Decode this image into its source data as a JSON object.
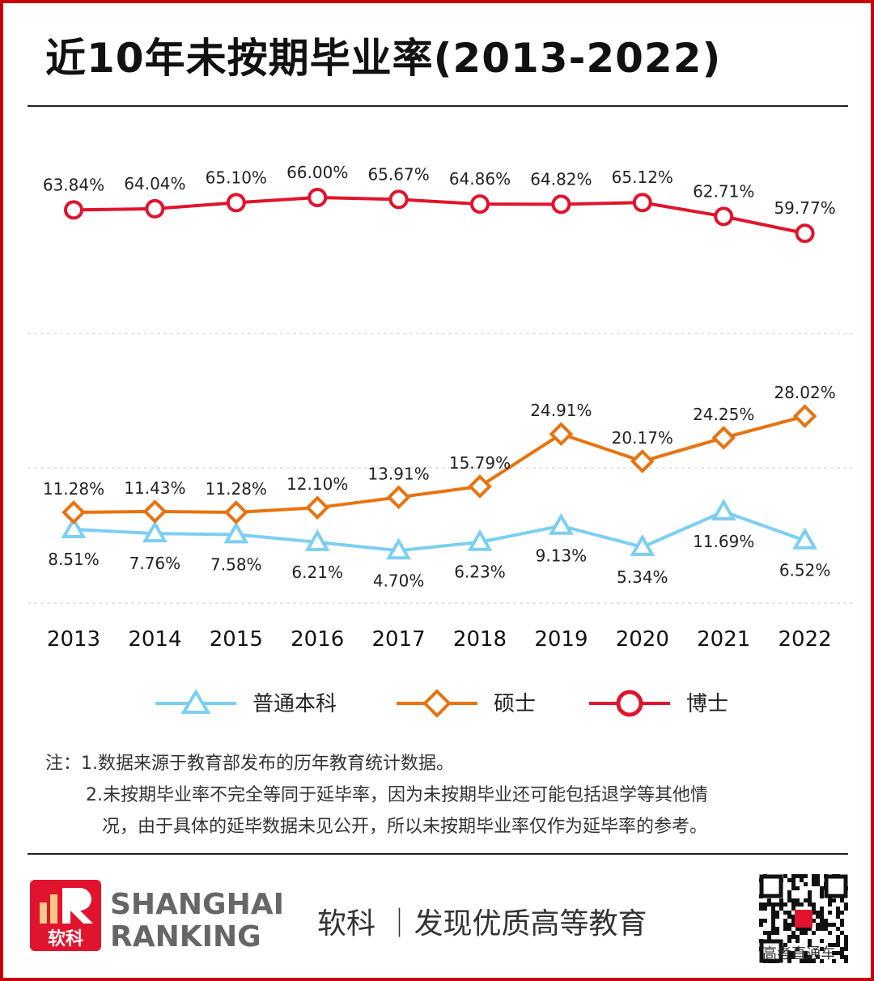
{
  "title": "近10年未按期毕业率(2013-2022)",
  "chart_data": {
    "type": "line",
    "categories": [
      "2013",
      "2014",
      "2015",
      "2016",
      "2017",
      "2018",
      "2019",
      "2020",
      "2021",
      "2022"
    ],
    "series": [
      {
        "name": "普通本科",
        "color": "#7ccff2",
        "marker": "triangle",
        "values": [
          8.51,
          7.76,
          7.58,
          6.21,
          4.7,
          6.23,
          9.13,
          5.34,
          11.69,
          6.52
        ],
        "labels": [
          "8.51%",
          "7.76%",
          "7.58%",
          "6.21%",
          "4.70%",
          "6.23%",
          "9.13%",
          "5.34%",
          "11.69%",
          "6.52%"
        ]
      },
      {
        "name": "硕士",
        "color": "#e8730f",
        "marker": "diamond",
        "values": [
          11.28,
          11.43,
          11.28,
          12.1,
          13.91,
          15.79,
          24.91,
          20.17,
          24.25,
          28.02
        ],
        "labels": [
          "11.28%",
          "11.43%",
          "11.28%",
          "12.10%",
          "13.91%",
          "15.79%",
          "24.91%",
          "20.17%",
          "24.25%",
          "28.02%"
        ]
      },
      {
        "name": "博士",
        "color": "#e0142d",
        "marker": "circle",
        "values": [
          63.84,
          64.04,
          65.1,
          66.0,
          65.67,
          64.86,
          64.82,
          65.12,
          62.71,
          59.77
        ],
        "labels": [
          "63.84%",
          "64.04%",
          "65.10%",
          "66.00%",
          "65.67%",
          "64.86%",
          "64.82%",
          "65.12%",
          "62.71%",
          "59.77%"
        ]
      }
    ],
    "legend_position": "bottom",
    "grid": "dashed horizontal, broken y-axis (no axis labels)"
  },
  "notes": {
    "line1": "注：1.数据来源于教育部发布的历年教育统计数据。",
    "line2": "2.未按期毕业率不完全等同于延毕率，因为未按期毕业还可能包括退学等其他情",
    "line3": "况，由于具体的延毕数据未见公开，所以未按期毕业率仅作为延毕率的参考。"
  },
  "footer": {
    "logo_text": "软科",
    "brand_line1": "SHANGHAI",
    "brand_line2": "RANKING",
    "slogan": "软科 ｜发现优质高等教育",
    "qr_caption": "高考直通车"
  }
}
